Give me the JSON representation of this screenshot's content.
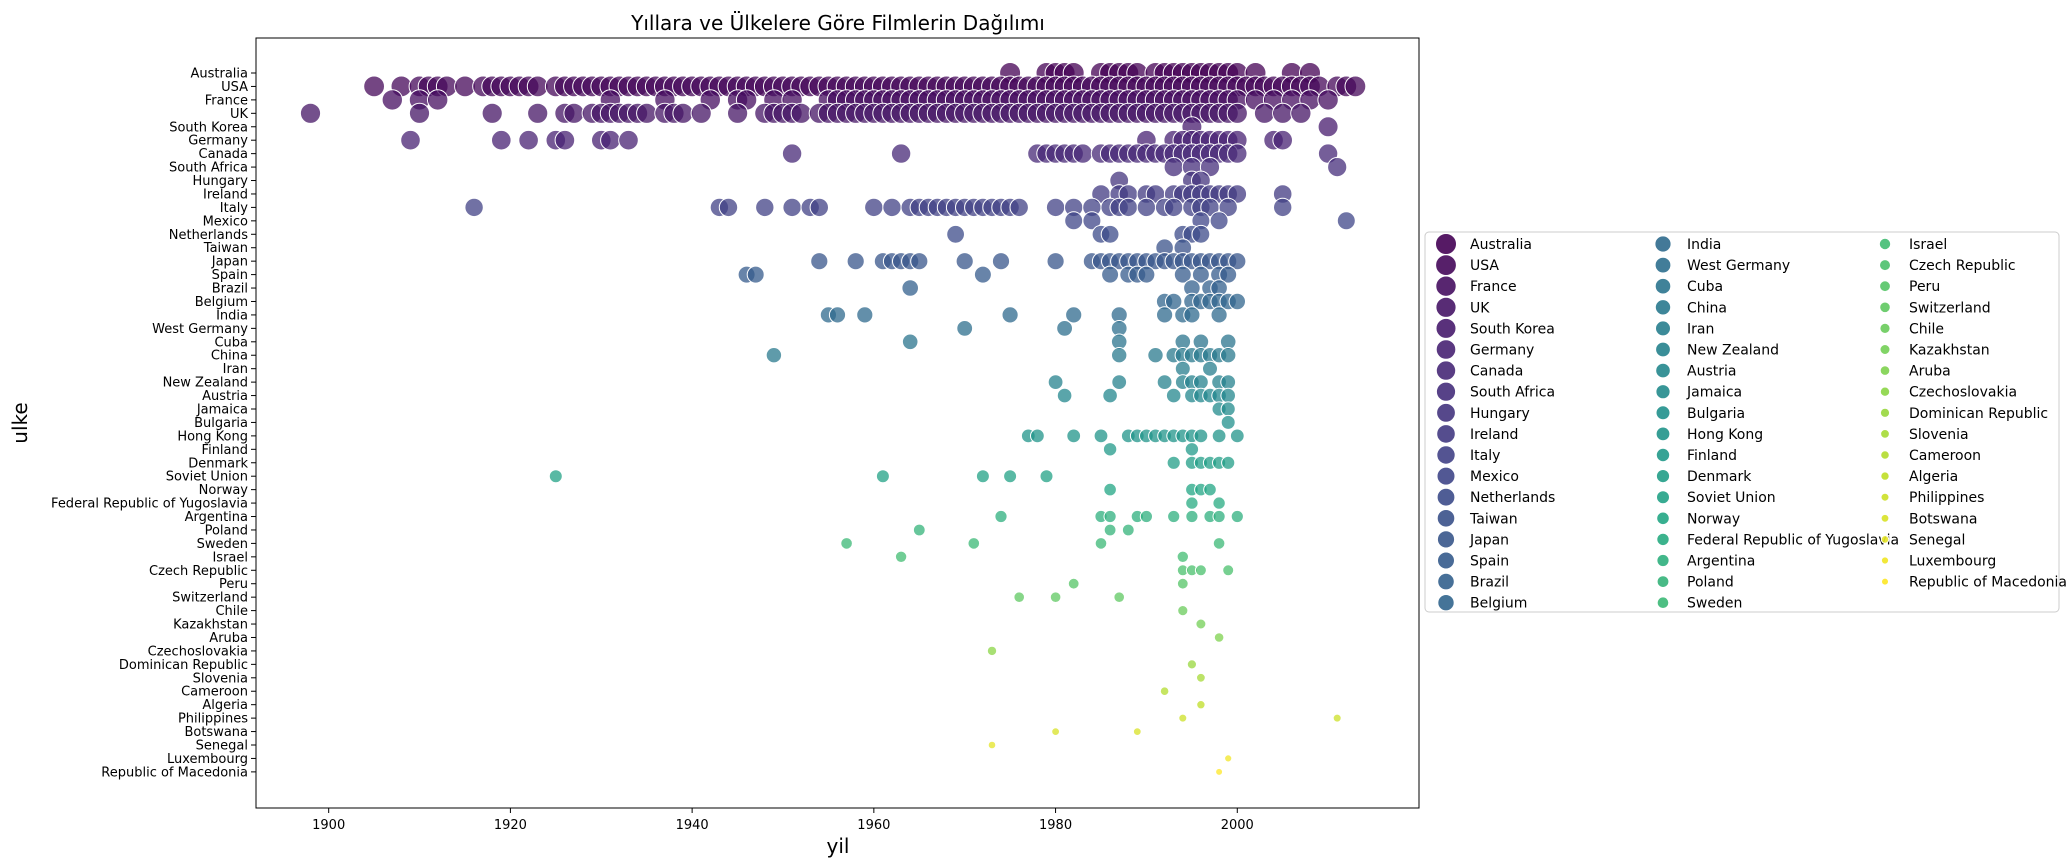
{
  "chart_data": {
    "type": "scatter",
    "title": "Yıllara ve Ülkelere Göre Filmlerin Dağılımı",
    "xlabel": "yil",
    "ylabel": "ulke",
    "xlim": [
      1892,
      2020
    ],
    "x_ticks": [
      1900,
      1920,
      1940,
      1960,
      1980,
      2000
    ],
    "grid": false,
    "legend_position": "right",
    "legend_columns": 3,
    "colormap": "viridis",
    "countries": [
      "Australia",
      "USA",
      "France",
      "UK",
      "South Korea",
      "Germany",
      "Canada",
      "South Africa",
      "Hungary",
      "Ireland",
      "Italy",
      "Mexico",
      "Netherlands",
      "Taiwan",
      "Japan",
      "Spain",
      "Brazil",
      "Belgium",
      "India",
      "West Germany",
      "Cuba",
      "China",
      "Iran",
      "New Zealand",
      "Austria",
      "Jamaica",
      "Bulgaria",
      "Hong Kong",
      "Finland",
      "Denmark",
      "Soviet Union",
      "Norway",
      "Federal Republic of Yugoslavia",
      "Argentina",
      "Poland",
      "Sweden",
      "Israel",
      "Czech Republic",
      "Peru",
      "Switzerland",
      "Chile",
      "Kazakhstan",
      "Aruba",
      "Czechoslovakia",
      "Dominican Republic",
      "Slovenia",
      "Cameroon",
      "Algeria",
      "Philippines",
      "Botswana",
      "Senegal",
      "Luxembourg",
      "Republic of Macedonia"
    ],
    "series": [
      {
        "name": "Australia",
        "x": [
          1975,
          1979,
          1980,
          1981,
          1982,
          1985,
          1986,
          1987,
          1988,
          1989,
          1991,
          1992,
          1993,
          1994,
          1995,
          1996,
          1997,
          1998,
          1999,
          2000,
          2002,
          2006,
          2008
        ]
      },
      {
        "name": "USA",
        "x": [
          1905,
          1908,
          1910,
          1911,
          1912,
          1913,
          1915,
          1917,
          1918,
          1919,
          1920,
          1921,
          1922,
          1923,
          1925,
          1926,
          1927,
          1928,
          1929,
          1930,
          1931,
          1932,
          1933,
          1934,
          1935,
          1936,
          1937,
          1938,
          1939,
          1940,
          1941,
          1942,
          1943,
          1944,
          1945,
          1946,
          1947,
          1948,
          1949,
          1950,
          1951,
          1952,
          1953,
          1954,
          1955,
          1956,
          1957,
          1958,
          1959,
          1960,
          1961,
          1962,
          1963,
          1964,
          1965,
          1966,
          1967,
          1968,
          1969,
          1970,
          1971,
          1972,
          1973,
          1974,
          1975,
          1976,
          1977,
          1978,
          1979,
          1980,
          1981,
          1982,
          1983,
          1984,
          1985,
          1986,
          1987,
          1988,
          1989,
          1990,
          1991,
          1992,
          1993,
          1994,
          1995,
          1996,
          1997,
          1998,
          1999,
          2000,
          2001,
          2002,
          2003,
          2004,
          2005,
          2006,
          2007,
          2008,
          2009,
          2011,
          2012,
          2013
        ]
      },
      {
        "name": "France",
        "x": [
          1907,
          1910,
          1912,
          1931,
          1937,
          1942,
          1945,
          1946,
          1949,
          1951,
          1955,
          1956,
          1957,
          1958,
          1959,
          1960,
          1961,
          1962,
          1963,
          1964,
          1965,
          1966,
          1967,
          1968,
          1969,
          1970,
          1971,
          1972,
          1973,
          1974,
          1975,
          1976,
          1977,
          1978,
          1979,
          1980,
          1981,
          1982,
          1983,
          1984,
          1985,
          1986,
          1987,
          1988,
          1989,
          1990,
          1991,
          1992,
          1993,
          1994,
          1995,
          1996,
          1997,
          1998,
          1999,
          2000,
          2002,
          2004,
          2006,
          2008,
          2010
        ]
      },
      {
        "name": "UK",
        "x": [
          1898,
          1910,
          1918,
          1923,
          1926,
          1927,
          1929,
          1930,
          1931,
          1932,
          1933,
          1934,
          1935,
          1937,
          1938,
          1939,
          1941,
          1945,
          1948,
          1949,
          1950,
          1951,
          1952,
          1954,
          1955,
          1956,
          1957,
          1958,
          1959,
          1960,
          1961,
          1962,
          1963,
          1964,
          1965,
          1966,
          1967,
          1968,
          1969,
          1970,
          1971,
          1972,
          1973,
          1974,
          1975,
          1976,
          1977,
          1978,
          1979,
          1980,
          1981,
          1982,
          1983,
          1984,
          1985,
          1986,
          1987,
          1988,
          1989,
          1990,
          1991,
          1992,
          1993,
          1994,
          1995,
          1996,
          1997,
          1998,
          1999,
          2000,
          2003,
          2005,
          2007
        ]
      },
      {
        "name": "South Korea",
        "x": [
          1995,
          2010
        ]
      },
      {
        "name": "Germany",
        "x": [
          1909,
          1919,
          1922,
          1925,
          1926,
          1930,
          1931,
          1933,
          1990,
          1993,
          1994,
          1995,
          1996,
          1997,
          1998,
          1999,
          2000,
          2004,
          2005
        ]
      },
      {
        "name": "Canada",
        "x": [
          1951,
          1963,
          1978,
          1979,
          1980,
          1981,
          1982,
          1983,
          1985,
          1986,
          1987,
          1988,
          1989,
          1990,
          1991,
          1992,
          1993,
          1994,
          1995,
          1996,
          1997,
          1998,
          1999,
          2000,
          2010
        ]
      },
      {
        "name": "South Africa",
        "x": [
          1993,
          1995,
          1997,
          2011
        ]
      },
      {
        "name": "Hungary",
        "x": [
          1987,
          1995,
          1996
        ]
      },
      {
        "name": "Ireland",
        "x": [
          1985,
          1987,
          1988,
          1990,
          1991,
          1993,
          1994,
          1995,
          1996,
          1997,
          1998,
          1999,
          2000,
          2005
        ]
      },
      {
        "name": "Italy",
        "x": [
          1916,
          1943,
          1944,
          1948,
          1951,
          1953,
          1954,
          1960,
          1962,
          1964,
          1965,
          1966,
          1967,
          1968,
          1969,
          1970,
          1971,
          1972,
          1973,
          1974,
          1975,
          1976,
          1980,
          1982,
          1984,
          1986,
          1987,
          1988,
          1990,
          1992,
          1993,
          1995,
          1996,
          1997,
          1999,
          2005
        ]
      },
      {
        "name": "Mexico",
        "x": [
          1982,
          1984,
          1996,
          1998,
          2012
        ]
      },
      {
        "name": "Netherlands",
        "x": [
          1969,
          1985,
          1986,
          1994,
          1995,
          1996
        ]
      },
      {
        "name": "Taiwan",
        "x": [
          1992,
          1994
        ]
      },
      {
        "name": "Japan",
        "x": [
          1954,
          1958,
          1961,
          1962,
          1963,
          1964,
          1965,
          1970,
          1974,
          1980,
          1984,
          1985,
          1986,
          1987,
          1988,
          1989,
          1990,
          1991,
          1992,
          1993,
          1994,
          1995,
          1996,
          1997,
          1998,
          1999,
          2000
        ]
      },
      {
        "name": "Spain",
        "x": [
          1946,
          1947,
          1972,
          1986,
          1988,
          1989,
          1990,
          1994,
          1996,
          1998,
          1999
        ]
      },
      {
        "name": "Brazil",
        "x": [
          1964,
          1995,
          1997,
          1998
        ]
      },
      {
        "name": "Belgium",
        "x": [
          1992,
          1993,
          1995,
          1996,
          1997,
          1998,
          1999,
          2000
        ]
      },
      {
        "name": "India",
        "x": [
          1955,
          1956,
          1959,
          1975,
          1982,
          1987,
          1992,
          1994,
          1995,
          1998
        ]
      },
      {
        "name": "West Germany",
        "x": [
          1970,
          1981,
          1987
        ]
      },
      {
        "name": "Cuba",
        "x": [
          1964,
          1987,
          1994,
          1996,
          1999
        ]
      },
      {
        "name": "China",
        "x": [
          1949,
          1987,
          1991,
          1993,
          1994,
          1995,
          1996,
          1997,
          1998,
          1999
        ]
      },
      {
        "name": "Iran",
        "x": [
          1994,
          1997
        ]
      },
      {
        "name": "New Zealand",
        "x": [
          1980,
          1987,
          1992,
          1994,
          1995,
          1996,
          1998,
          1999
        ]
      },
      {
        "name": "Austria",
        "x": [
          1981,
          1986,
          1993,
          1995,
          1996,
          1997,
          1998,
          1999
        ]
      },
      {
        "name": "Jamaica",
        "x": [
          1998,
          1999
        ]
      },
      {
        "name": "Bulgaria",
        "x": [
          1999
        ]
      },
      {
        "name": "Hong Kong",
        "x": [
          1977,
          1978,
          1982,
          1985,
          1988,
          1989,
          1990,
          1991,
          1992,
          1993,
          1994,
          1995,
          1996,
          1998,
          2000
        ]
      },
      {
        "name": "Finland",
        "x": [
          1986,
          1995
        ]
      },
      {
        "name": "Denmark",
        "x": [
          1993,
          1995,
          1996,
          1997,
          1998,
          1999
        ]
      },
      {
        "name": "Soviet Union",
        "x": [
          1925,
          1961,
          1972,
          1975,
          1979
        ]
      },
      {
        "name": "Norway",
        "x": [
          1986,
          1995,
          1996,
          1997
        ]
      },
      {
        "name": "Federal Republic of Yugoslavia",
        "x": [
          1995,
          1998
        ]
      },
      {
        "name": "Argentina",
        "x": [
          1974,
          1985,
          1986,
          1989,
          1990,
          1993,
          1995,
          1997,
          1998,
          2000
        ]
      },
      {
        "name": "Poland",
        "x": [
          1965,
          1986,
          1988
        ]
      },
      {
        "name": "Sweden",
        "x": [
          1957,
          1971,
          1985,
          1998
        ]
      },
      {
        "name": "Israel",
        "x": [
          1963,
          1994
        ]
      },
      {
        "name": "Czech Republic",
        "x": [
          1994,
          1995,
          1996,
          1999
        ]
      },
      {
        "name": "Peru",
        "x": [
          1982,
          1994
        ]
      },
      {
        "name": "Switzerland",
        "x": [
          1976,
          1980,
          1987
        ]
      },
      {
        "name": "Chile",
        "x": [
          1994
        ]
      },
      {
        "name": "Kazakhstan",
        "x": [
          1996
        ]
      },
      {
        "name": "Aruba",
        "x": [
          1998
        ]
      },
      {
        "name": "Czechoslovakia",
        "x": [
          1973
        ]
      },
      {
        "name": "Dominican Republic",
        "x": [
          1995
        ]
      },
      {
        "name": "Slovenia",
        "x": [
          1996
        ]
      },
      {
        "name": "Cameroon",
        "x": [
          1992
        ]
      },
      {
        "name": "Algeria",
        "x": [
          1996
        ]
      },
      {
        "name": "Philippines",
        "x": [
          1994,
          2011
        ]
      },
      {
        "name": "Botswana",
        "x": [
          1980,
          1989
        ]
      },
      {
        "name": "Senegal",
        "x": [
          1973
        ]
      },
      {
        "name": "Luxembourg",
        "x": [
          1999
        ]
      },
      {
        "name": "Republic of Macedonia",
        "x": [
          1998
        ]
      }
    ]
  }
}
